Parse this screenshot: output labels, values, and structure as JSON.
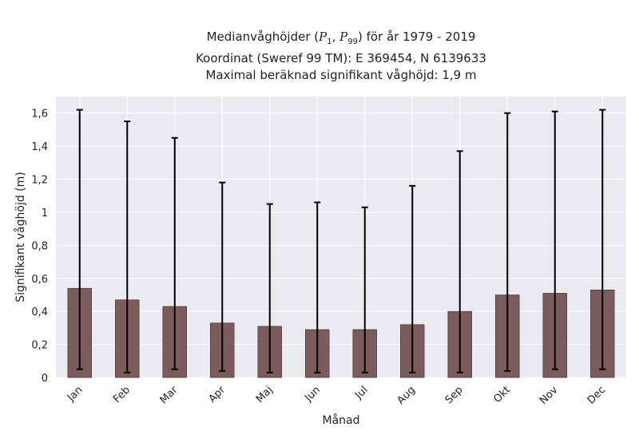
{
  "title": {
    "line1_prefix": "Medianvåghöjder (",
    "p1_sym": "P",
    "p1_sub": "1",
    "sep": ", ",
    "p99_sym": "P",
    "p99_sub": "99",
    "line1_suffix": ") för år 1979 - 2019",
    "line2": "Koordinat (Sweref 99 TM): E 369454, N 6139633",
    "line3": "Maximal beräknad signifikant våghöjd: 1,9 m"
  },
  "chart_data": {
    "type": "bar",
    "xlabel": "Månad",
    "ylabel": "Signifikant våghöjd (m)",
    "ylim": [
      0,
      1.7
    ],
    "yticks": [
      0,
      0.2,
      0.4,
      0.6,
      0.8,
      1,
      1.2,
      1.4,
      1.6
    ],
    "ytick_labels": [
      "0",
      "0,2",
      "0,4",
      "0,6",
      "0,8",
      "1",
      "1,2",
      "1,4",
      "1,6"
    ],
    "categories": [
      "Jan",
      "Feb",
      "Mar",
      "Apr",
      "Maj",
      "Jun",
      "Jul",
      "Aug",
      "Sep",
      "Okt",
      "Nov",
      "Dec"
    ],
    "values": [
      0.54,
      0.47,
      0.43,
      0.33,
      0.31,
      0.29,
      0.29,
      0.32,
      0.4,
      0.5,
      0.51,
      0.53
    ],
    "error_low": [
      0.05,
      0.03,
      0.05,
      0.04,
      0.03,
      0.03,
      0.03,
      0.03,
      0.03,
      0.04,
      0.05,
      0.05
    ],
    "error_high": [
      1.62,
      1.55,
      1.45,
      1.18,
      1.05,
      1.06,
      1.03,
      1.16,
      1.37,
      1.6,
      1.61,
      1.62
    ],
    "grid": true,
    "bar_color": "#7b5b5b",
    "error_color": "#000000",
    "plot_background": "#eaeaf2",
    "grid_color": "#ffffff"
  }
}
